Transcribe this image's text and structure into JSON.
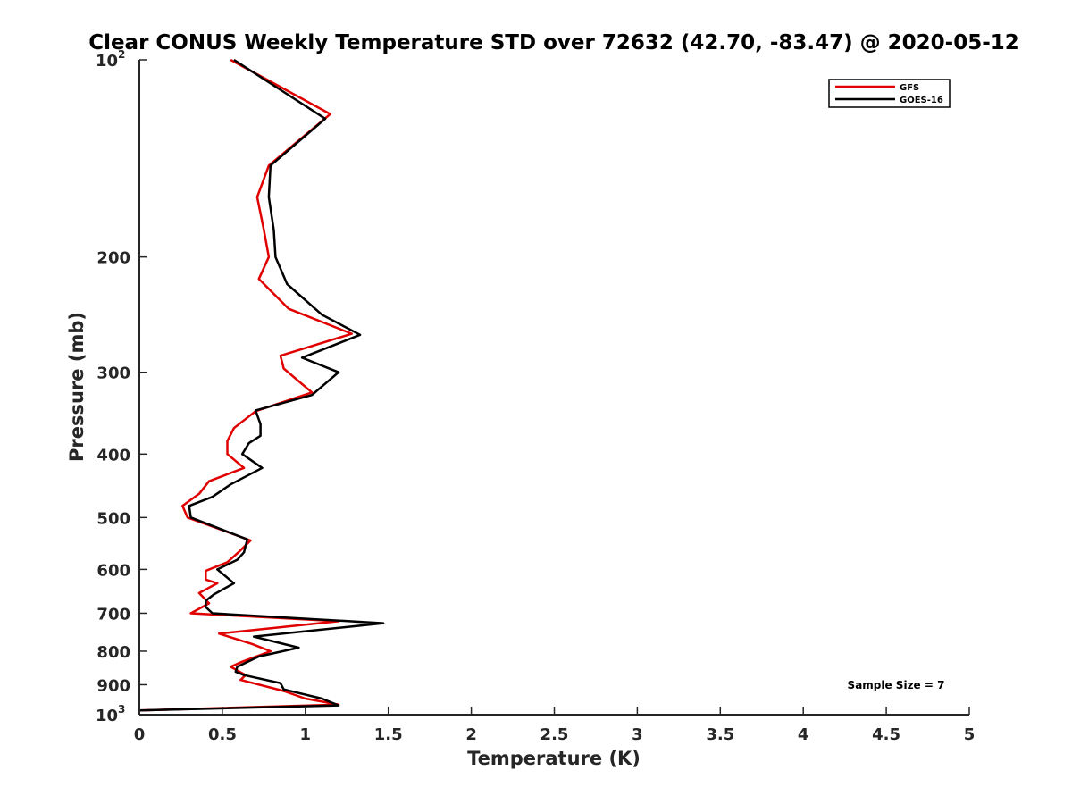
{
  "chart_data": {
    "type": "line",
    "title": "Clear CONUS Weekly Temperature STD over 72632 (42.70, -83.47) @ 2020-05-12",
    "xlabel": "Temperature (K)",
    "ylabel": "Pressure (mb)",
    "xlim": [
      0,
      5
    ],
    "ylim": [
      100,
      1000
    ],
    "y_scale": "log",
    "y_reversed": true,
    "grid": false,
    "legend_position": "top-right",
    "x_ticks": [
      {
        "value": 0,
        "label": "0"
      },
      {
        "value": 0.5,
        "label": "0.5"
      },
      {
        "value": 1,
        "label": "1"
      },
      {
        "value": 1.5,
        "label": "1.5"
      },
      {
        "value": 2,
        "label": "2"
      },
      {
        "value": 2.5,
        "label": "2.5"
      },
      {
        "value": 3,
        "label": "3"
      },
      {
        "value": 3.5,
        "label": "3.5"
      },
      {
        "value": 4,
        "label": "4"
      },
      {
        "value": 4.5,
        "label": "4.5"
      },
      {
        "value": 5,
        "label": "5"
      }
    ],
    "y_ticks": [
      {
        "value": 100,
        "base": "10",
        "exp": "2"
      },
      {
        "value": 200,
        "label": "200"
      },
      {
        "value": 300,
        "label": "300"
      },
      {
        "value": 400,
        "label": "400"
      },
      {
        "value": 500,
        "label": "500"
      },
      {
        "value": 600,
        "label": "600"
      },
      {
        "value": 700,
        "label": "700"
      },
      {
        "value": 800,
        "label": "800"
      },
      {
        "value": 900,
        "label": "900"
      },
      {
        "value": 1000,
        "base": "10",
        "exp": "3"
      }
    ],
    "series": [
      {
        "name": "GFS",
        "color": "#e00000",
        "points": [
          [
            0.55,
            100
          ],
          [
            1.15,
            121
          ],
          [
            0.78,
            145
          ],
          [
            0.71,
            162
          ],
          [
            0.75,
            182
          ],
          [
            0.78,
            200
          ],
          [
            0.72,
            216
          ],
          [
            0.9,
            240
          ],
          [
            1.28,
            262
          ],
          [
            0.85,
            283
          ],
          [
            0.87,
            296
          ],
          [
            1.04,
            322
          ],
          [
            0.7,
            344
          ],
          [
            0.57,
            365
          ],
          [
            0.53,
            382
          ],
          [
            0.53,
            400
          ],
          [
            0.63,
            420
          ],
          [
            0.42,
            440
          ],
          [
            0.36,
            460
          ],
          [
            0.26,
            480
          ],
          [
            0.29,
            500
          ],
          [
            0.67,
            542
          ],
          [
            0.6,
            564
          ],
          [
            0.53,
            585
          ],
          [
            0.4,
            603
          ],
          [
            0.4,
            622
          ],
          [
            0.47,
            630
          ],
          [
            0.36,
            652
          ],
          [
            0.42,
            676
          ],
          [
            0.31,
            700
          ],
          [
            1.2,
            720
          ],
          [
            0.48,
            752
          ],
          [
            0.68,
            780
          ],
          [
            0.79,
            800
          ],
          [
            0.62,
            830
          ],
          [
            0.55,
            845
          ],
          [
            0.64,
            870
          ],
          [
            0.61,
            885
          ],
          [
            0.87,
            920
          ],
          [
            1.0,
            945
          ],
          [
            1.2,
            965
          ],
          [
            0.0,
            985
          ]
        ]
      },
      {
        "name": "GOES-16",
        "color": "#000000",
        "points": [
          [
            0.57,
            100
          ],
          [
            1.12,
            123
          ],
          [
            0.79,
            145
          ],
          [
            0.78,
            162
          ],
          [
            0.81,
            182
          ],
          [
            0.82,
            200
          ],
          [
            0.89,
            220
          ],
          [
            1.1,
            245
          ],
          [
            1.33,
            263
          ],
          [
            0.98,
            285
          ],
          [
            1.2,
            300
          ],
          [
            1.04,
            325
          ],
          [
            0.7,
            343
          ],
          [
            0.73,
            360
          ],
          [
            0.73,
            375
          ],
          [
            0.66,
            385
          ],
          [
            0.62,
            400
          ],
          [
            0.74,
            420
          ],
          [
            0.55,
            445
          ],
          [
            0.44,
            465
          ],
          [
            0.3,
            480
          ],
          [
            0.31,
            500
          ],
          [
            0.65,
            540
          ],
          [
            0.63,
            565
          ],
          [
            0.59,
            580
          ],
          [
            0.47,
            600
          ],
          [
            0.57,
            630
          ],
          [
            0.45,
            655
          ],
          [
            0.4,
            670
          ],
          [
            0.4,
            685
          ],
          [
            0.44,
            700
          ],
          [
            1.47,
            725
          ],
          [
            0.69,
            760
          ],
          [
            0.96,
            790
          ],
          [
            0.72,
            815
          ],
          [
            0.59,
            845
          ],
          [
            0.58,
            860
          ],
          [
            0.63,
            870
          ],
          [
            0.85,
            895
          ],
          [
            0.87,
            915
          ],
          [
            1.1,
            945
          ],
          [
            1.2,
            968
          ],
          [
            0.0,
            985
          ]
        ]
      }
    ],
    "annotations": [
      {
        "text": "Sample Size = 7",
        "position": "bottom-right"
      }
    ]
  }
}
